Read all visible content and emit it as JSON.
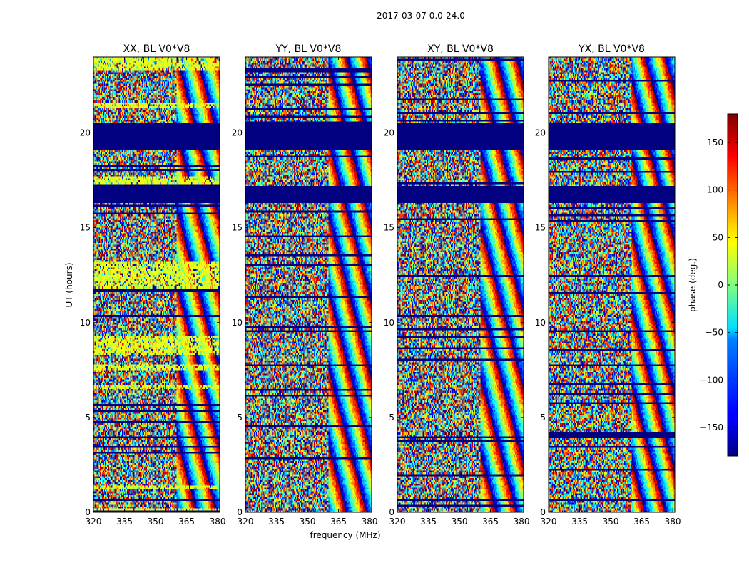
{
  "chart_data": {
    "type": "heatmap",
    "title": "2017-03-07 0.0-24.0",
    "xlabel": "frequency (MHz)",
    "ylabel": "UT (hours)",
    "xlim": [
      320,
      381
    ],
    "ylim": [
      0,
      24
    ],
    "xticks": [
      320,
      335,
      350,
      365,
      380
    ],
    "yticks": [
      0,
      5,
      10,
      15,
      20
    ],
    "panels": [
      {
        "title": "XX, BL V0*V8",
        "correlation": "XX"
      },
      {
        "title": "YY, BL V0*V8",
        "correlation": "YY"
      },
      {
        "title": "XY, BL V0*V8",
        "correlation": "XY"
      },
      {
        "title": "YX, BL V0*V8",
        "correlation": "YX"
      }
    ],
    "flagged_ut_ranges": [
      [
        16.3,
        17.2
      ],
      [
        19.1,
        20.5
      ]
    ],
    "colorbar": {
      "label": "phase (deg.)",
      "range": [
        -180,
        180
      ],
      "ticks": [
        -150,
        -100,
        -50,
        0,
        50,
        100,
        150
      ],
      "colormap": "jet"
    }
  }
}
